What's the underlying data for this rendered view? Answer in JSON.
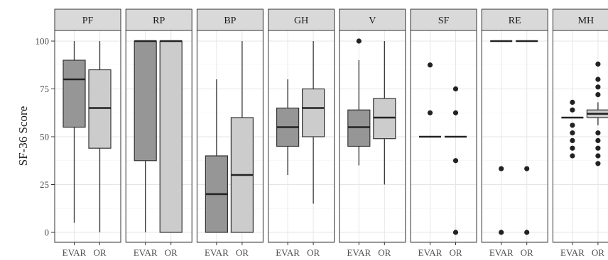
{
  "chart_data": {
    "type": "box",
    "ylabel": "SF-36 Score",
    "xlabel": "",
    "ylim": [
      0,
      100
    ],
    "yticks": [
      0,
      25,
      50,
      75,
      100
    ],
    "grid": true,
    "groups": [
      "EVAR",
      "OR"
    ],
    "group_colors": {
      "EVAR": "#969696",
      "OR": "#cccccc"
    },
    "panels": [
      {
        "label": "PF",
        "boxes": [
          {
            "group": "EVAR",
            "min": 5,
            "q1": 55,
            "median": 80,
            "q3": 90,
            "max": 100,
            "outliers": []
          },
          {
            "group": "OR",
            "min": 0,
            "q1": 44,
            "median": 65,
            "q3": 85,
            "max": 100,
            "outliers": []
          }
        ]
      },
      {
        "label": "RP",
        "boxes": [
          {
            "group": "EVAR",
            "min": 0,
            "q1": 37.5,
            "median": 100,
            "q3": 100,
            "max": 100,
            "outliers": []
          },
          {
            "group": "OR",
            "min": 0,
            "q1": 0,
            "median": 100,
            "q3": 100,
            "max": 100,
            "outliers": []
          }
        ]
      },
      {
        "label": "BP",
        "boxes": [
          {
            "group": "EVAR",
            "min": 0,
            "q1": 0,
            "median": 20,
            "q3": 40,
            "max": 80,
            "outliers": []
          },
          {
            "group": "OR",
            "min": 0,
            "q1": 0,
            "median": 30,
            "q3": 60,
            "max": 100,
            "outliers": []
          }
        ]
      },
      {
        "label": "GH",
        "boxes": [
          {
            "group": "EVAR",
            "min": 30,
            "q1": 45,
            "median": 55,
            "q3": 65,
            "max": 80,
            "outliers": []
          },
          {
            "group": "OR",
            "min": 15,
            "q1": 50,
            "median": 65,
            "q3": 75,
            "max": 100,
            "outliers": []
          }
        ]
      },
      {
        "label": "V",
        "boxes": [
          {
            "group": "EVAR",
            "min": 35,
            "q1": 45,
            "median": 55,
            "q3": 64,
            "max": 90,
            "outliers": [
              100
            ]
          },
          {
            "group": "OR",
            "min": 25,
            "q1": 49,
            "median": 60,
            "q3": 70,
            "max": 100,
            "outliers": []
          }
        ]
      },
      {
        "label": "SF",
        "boxes": [
          {
            "group": "EVAR",
            "min": 50,
            "q1": 50,
            "median": 50,
            "q3": 50,
            "max": 50,
            "outliers": [
              62.5,
              87.5
            ]
          },
          {
            "group": "OR",
            "min": 50,
            "q1": 50,
            "median": 50,
            "q3": 50,
            "max": 50,
            "outliers": [
              0,
              37.5,
              62.5,
              75
            ]
          }
        ]
      },
      {
        "label": "RE",
        "boxes": [
          {
            "group": "EVAR",
            "min": 100,
            "q1": 100,
            "median": 100,
            "q3": 100,
            "max": 100,
            "outliers": [
              0,
              33.3
            ]
          },
          {
            "group": "OR",
            "min": 100,
            "q1": 100,
            "median": 100,
            "q3": 100,
            "max": 100,
            "outliers": [
              0,
              33.3
            ]
          }
        ]
      },
      {
        "label": "MH",
        "boxes": [
          {
            "group": "EVAR",
            "min": 60,
            "q1": 60,
            "median": 60,
            "q3": 60,
            "max": 60,
            "outliers": [
              40,
              44,
              48,
              52,
              56,
              64,
              68
            ]
          },
          {
            "group": "OR",
            "min": 56,
            "q1": 60,
            "median": 62,
            "q3": 64,
            "max": 68,
            "outliers": [
              36,
              40,
              44,
              48,
              52,
              72,
              76,
              80,
              88
            ]
          }
        ]
      }
    ]
  }
}
